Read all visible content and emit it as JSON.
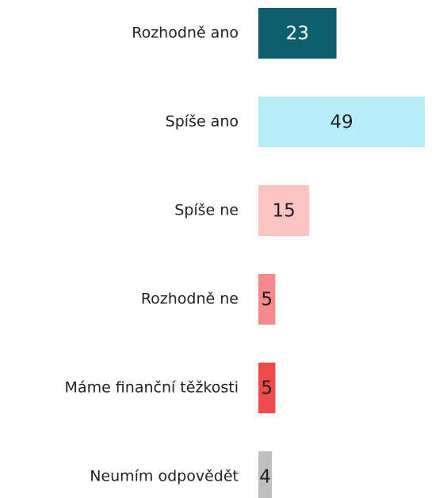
{
  "chart_data": {
    "type": "bar",
    "categories": [
      "Rozhodně ano",
      "Spíše ano",
      "Spíše ne",
      "Rozhodně ne",
      "Máme finanční těžkosti",
      "Neumím odpovědět"
    ],
    "values": [
      23,
      49,
      15,
      5,
      5,
      4
    ],
    "colors": [
      "#0e5f6e",
      "#b8edf7",
      "#fcc3c3",
      "#f58a8a",
      "#f04a4a",
      "#bfbfbf"
    ],
    "label_colors": [
      "#ffffff",
      "#222222",
      "#222222",
      "#222222",
      "#222222",
      "#222222"
    ]
  }
}
